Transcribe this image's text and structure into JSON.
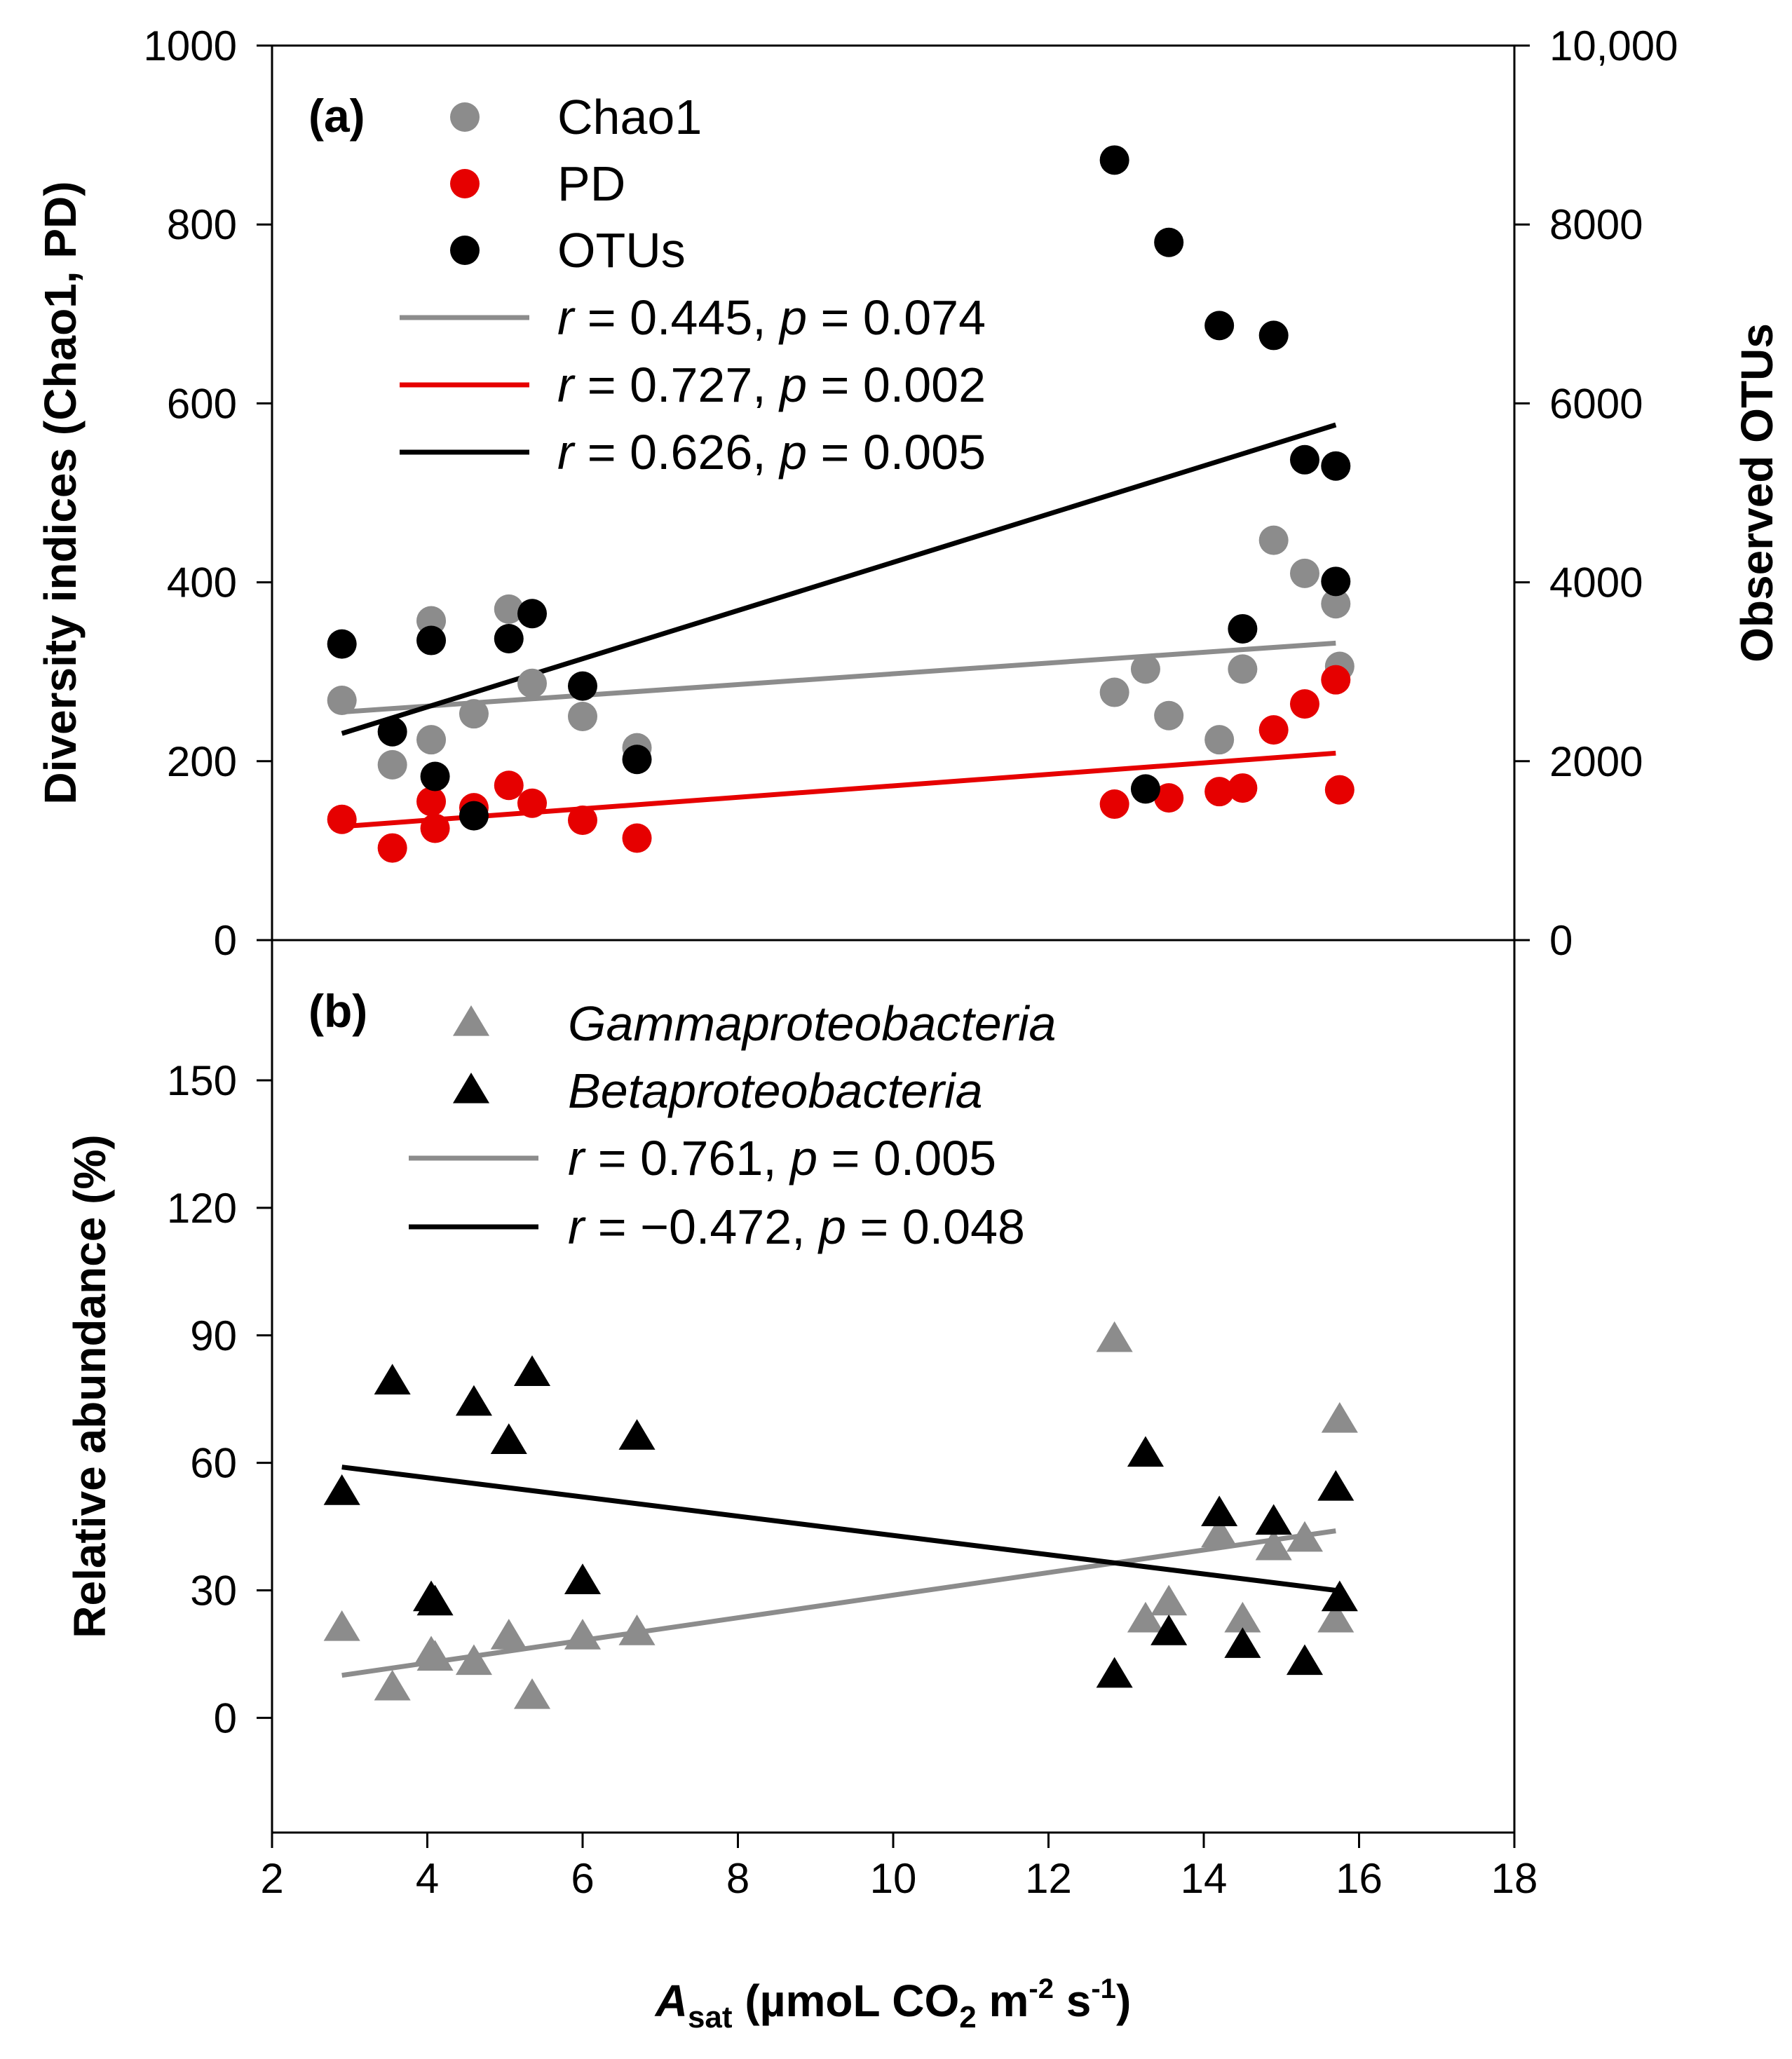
{
  "chart_data": [
    {
      "panel": "top",
      "type": "scatter",
      "panel_label": "(a)",
      "ylabel": "Diversity indices (Chao1, PD)",
      "ylabel_right": "Observed OTUs",
      "ylim": [
        0,
        1000
      ],
      "yticks": [
        "0",
        "200",
        "400",
        "600",
        "800",
        "1000"
      ],
      "ylim_right": [
        0,
        10000
      ],
      "yticks_right": [
        "0",
        "2000",
        "4000",
        "6000",
        "8000",
        "10,000"
      ],
      "colors": {
        "Chao1": "#8c8c8c",
        "PD": "#e60000",
        "OTUs": "#000000"
      },
      "series": [
        {
          "name": "Chao1",
          "axis": "left",
          "x": [
            2.9,
            3.55,
            4.05,
            4.05,
            4.6,
            5.05,
            5.35,
            6.0,
            6.7,
            12.85,
            13.25,
            13.55,
            14.2,
            14.5,
            14.9,
            15.3,
            15.7,
            15.75
          ],
          "y": [
            268,
            196,
            357,
            224,
            253,
            370,
            287,
            250,
            215,
            277,
            303,
            251,
            224,
            303,
            447,
            410,
            376,
            306
          ]
        },
        {
          "name": "PD",
          "axis": "left",
          "x": [
            2.9,
            3.55,
            4.05,
            4.1,
            4.6,
            5.05,
            5.35,
            6.0,
            6.7,
            12.85,
            13.55,
            14.2,
            14.5,
            14.9,
            15.3,
            15.7,
            15.75
          ],
          "y": [
            135,
            103,
            155,
            125,
            148,
            173,
            153,
            134,
            114,
            152,
            159,
            166,
            170,
            235,
            264,
            291,
            168
          ]
        },
        {
          "name": "OTUs",
          "axis": "right",
          "x": [
            2.9,
            3.55,
            4.05,
            4.1,
            4.6,
            5.05,
            5.35,
            6.0,
            6.7,
            12.85,
            13.25,
            13.55,
            14.2,
            14.5,
            14.9,
            15.3,
            15.7,
            15.7
          ],
          "y": [
            3310,
            2330,
            3350,
            1830,
            1390,
            3370,
            3650,
            2840,
            2020,
            8720,
            1690,
            7800,
            6870,
            3480,
            6760,
            5370,
            5300,
            4010
          ]
        }
      ],
      "fits": [
        {
          "name": "Chao1",
          "label_r": "0.445",
          "label_p": "0.074",
          "x": [
            2.9,
            15.7
          ],
          "y": [
            255,
            332
          ]
        },
        {
          "name": "PD",
          "label_r": "0.727",
          "label_p": "0.002",
          "x": [
            2.9,
            15.7
          ],
          "y": [
            127,
            209
          ]
        },
        {
          "name": "OTUs",
          "label_r": "0.626",
          "label_p": "0.005",
          "axis": "right",
          "x": [
            2.9,
            15.7
          ],
          "y": [
            2310,
            5760
          ]
        }
      ]
    },
    {
      "panel": "bottom",
      "type": "scatter",
      "panel_label": "(b)",
      "ylabel": "Relative abundance (%)",
      "ylim": [
        -27,
        183
      ],
      "yticks": [
        "0",
        "30",
        "60",
        "90",
        "120",
        "150"
      ],
      "colors": {
        "Gammaproteobacteria": "#8c8c8c",
        "Betaproteobacteria": "#000000"
      },
      "series": [
        {
          "name": "Gammaproteobacteria",
          "marker": "triangle",
          "x": [
            2.9,
            3.55,
            4.05,
            4.1,
            4.6,
            5.05,
            5.35,
            6.0,
            6.7,
            12.85,
            13.25,
            13.55,
            14.2,
            14.5,
            14.9,
            15.3,
            15.7,
            15.75
          ],
          "y": [
            21,
            7,
            15,
            14,
            13,
            19,
            5,
            19,
            20,
            89,
            23,
            27,
            43,
            23,
            40,
            42,
            23,
            70
          ]
        },
        {
          "name": "Betaproteobacteria",
          "marker": "triangle",
          "x": [
            2.9,
            3.55,
            4.05,
            4.1,
            4.6,
            5.05,
            5.35,
            6.0,
            6.7,
            12.85,
            13.25,
            13.55,
            14.2,
            14.5,
            14.9,
            15.3,
            15.7,
            15.75
          ],
          "y": [
            53,
            79,
            28,
            27,
            74,
            65,
            81,
            32,
            66,
            10,
            62,
            20,
            48,
            17,
            46,
            13,
            54,
            28
          ]
        }
      ],
      "fits": [
        {
          "name": "Gammaproteobacteria",
          "label_r": "0.761",
          "label_p": "0.005",
          "x": [
            2.9,
            15.7
          ],
          "y": [
            10,
            44
          ]
        },
        {
          "name": "Betaproteobacteria",
          "label_r": "−0.472",
          "label_p": "0.048",
          "x": [
            2.9,
            15.7
          ],
          "y": [
            59,
            30
          ]
        }
      ]
    }
  ],
  "xaxis": {
    "xlim": [
      2,
      18
    ],
    "xticks": [
      "2",
      "4",
      "6",
      "8",
      "10",
      "12",
      "14",
      "16",
      "18"
    ],
    "label_main": "A",
    "label_sub": "sat",
    "label_mid": " (µmoL CO",
    "label_co2_sub": "2",
    "label_m": " m",
    "label_m_exp": "-2",
    "label_s": " s",
    "label_s_exp": "-1",
    "label_close": ")"
  },
  "legend_text": {
    "r": "r",
    "eq": " = ",
    "p": "p",
    "sep": ", "
  }
}
